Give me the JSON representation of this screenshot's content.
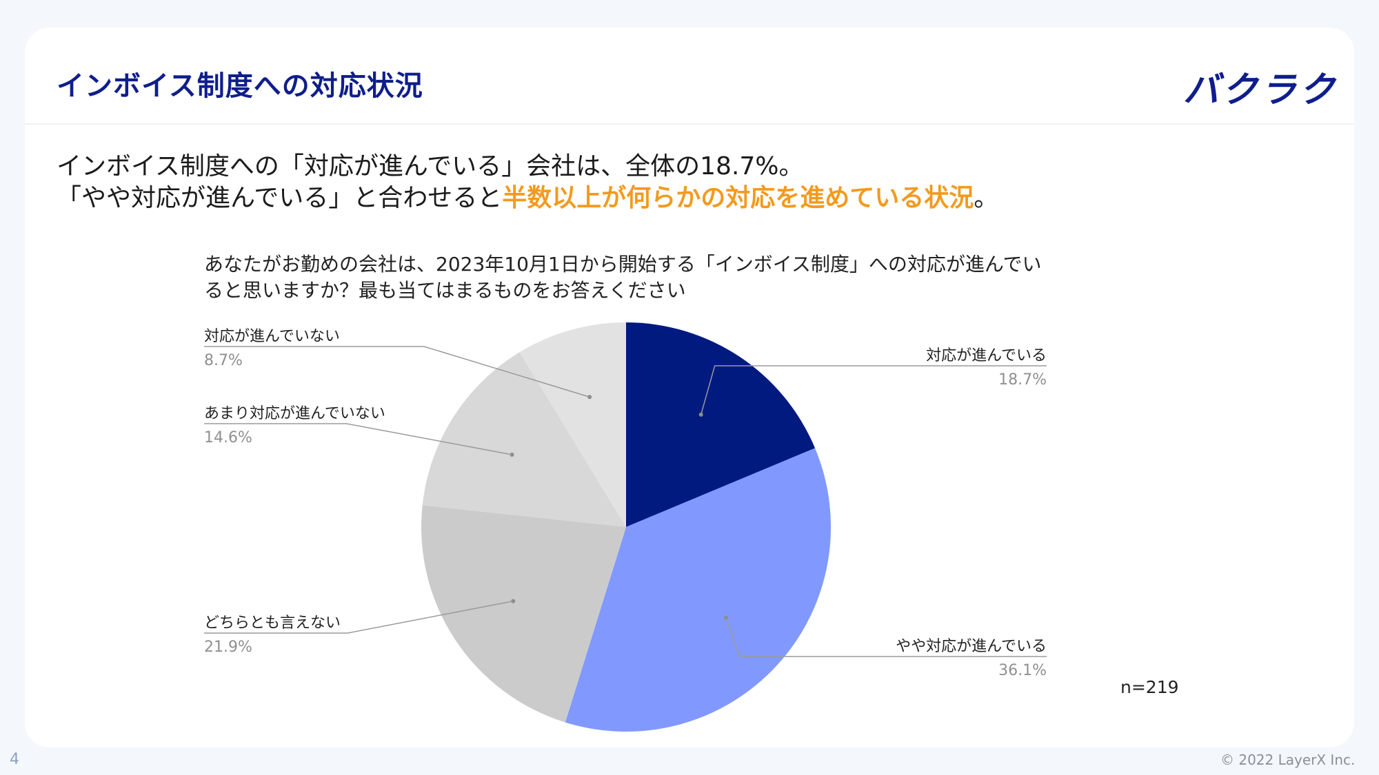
{
  "header": {
    "title": "インボイス制度への対応状況",
    "logo": "バクラク"
  },
  "lead": {
    "line1": "インボイス制度への「対応が進んでいる」会社は、全体の18.7%。",
    "line2_prefix": "「やや対応が進んでいる」と合わせると",
    "line2_highlight": "半数以上が何らかの対応を進めている状況",
    "line2_suffix": "。"
  },
  "colors": {
    "brand": "#0f1e8c",
    "accent": "#f39a1e"
  },
  "chart_data": {
    "type": "pie",
    "title": "あなたがお勤めの会社は、2023年10月1日から開始する「インボイス制度」への対応が進んでいると思いますか？最も当てはまるものをお答えください",
    "slices": [
      {
        "label": "対応が進んでいる",
        "value": 18.7,
        "value_label": "18.7%",
        "color": "#001a80"
      },
      {
        "label": "やや対応が進んでいる",
        "value": 36.1,
        "value_label": "36.1%",
        "color": "#8199ff"
      },
      {
        "label": "どちらとも言えない",
        "value": 21.9,
        "value_label": "21.9%",
        "color": "#cbcbcb"
      },
      {
        "label": "あまり対応が進んでいない",
        "value": 14.6,
        "value_label": "14.6%",
        "color": "#d8d8d8"
      },
      {
        "label": "対応が進んでいない",
        "value": 8.7,
        "value_label": "8.7%",
        "color": "#e2e2e2"
      }
    ],
    "start_angle_deg": 0,
    "direction": "clockwise",
    "sample_size": "n=219"
  },
  "footer": {
    "page_number": "4",
    "copyright": "© 2022 LayerX Inc."
  }
}
